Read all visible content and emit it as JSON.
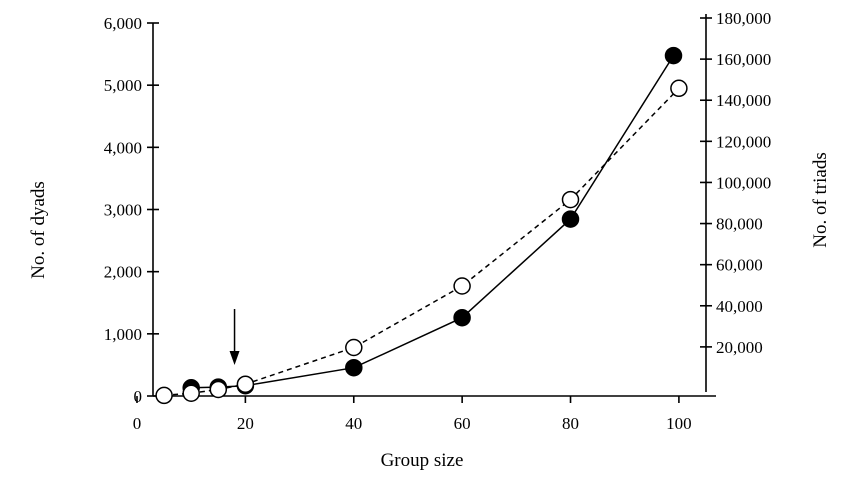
{
  "chart_data": {
    "type": "line",
    "xlabel": "Group size",
    "ylabel": "No. of dyads",
    "y2label": "No. of triads",
    "xlim": [
      0,
      105
    ],
    "ylim": [
      0,
      6000
    ],
    "y2lim": [
      0,
      180000
    ],
    "x_ticks": [
      0,
      20,
      40,
      60,
      80,
      100
    ],
    "x_tick_labels": [
      "0",
      "20",
      "40",
      "60",
      "80",
      "100"
    ],
    "y_ticks": [
      0,
      1000,
      2000,
      3000,
      4000,
      5000,
      6000
    ],
    "y_tick_labels": [
      "0",
      "1,000",
      "2,000",
      "3,000",
      "4,000",
      "5,000",
      "6,000"
    ],
    "y2_ticks": [
      20000,
      40000,
      60000,
      80000,
      100000,
      120000,
      140000,
      160000,
      180000
    ],
    "y2_tick_labels": [
      "20,000",
      "40,000",
      "60,000",
      "80,000",
      "100,000",
      "120,000",
      "140,000",
      "160,000",
      "180,000"
    ],
    "grid": false,
    "series": [
      {
        "axis": "left",
        "marker": "open-circle",
        "line_style": "dashed",
        "x": [
          5,
          10,
          15,
          20,
          40,
          60,
          80,
          100
        ],
        "y": [
          10,
          45,
          105,
          190,
          780,
          1770,
          3160,
          4950
        ]
      },
      {
        "axis": "right",
        "marker": "filled-circle",
        "line_style": "solid",
        "x": [
          10,
          15,
          20,
          40,
          60,
          80,
          99
        ],
        "y": [
          120,
          455,
          1140,
          9880,
          34220,
          82160,
          161700
        ]
      }
    ],
    "annotations": [
      {
        "type": "arrow",
        "direction": "down",
        "x": 18,
        "y": 80
      }
    ]
  }
}
